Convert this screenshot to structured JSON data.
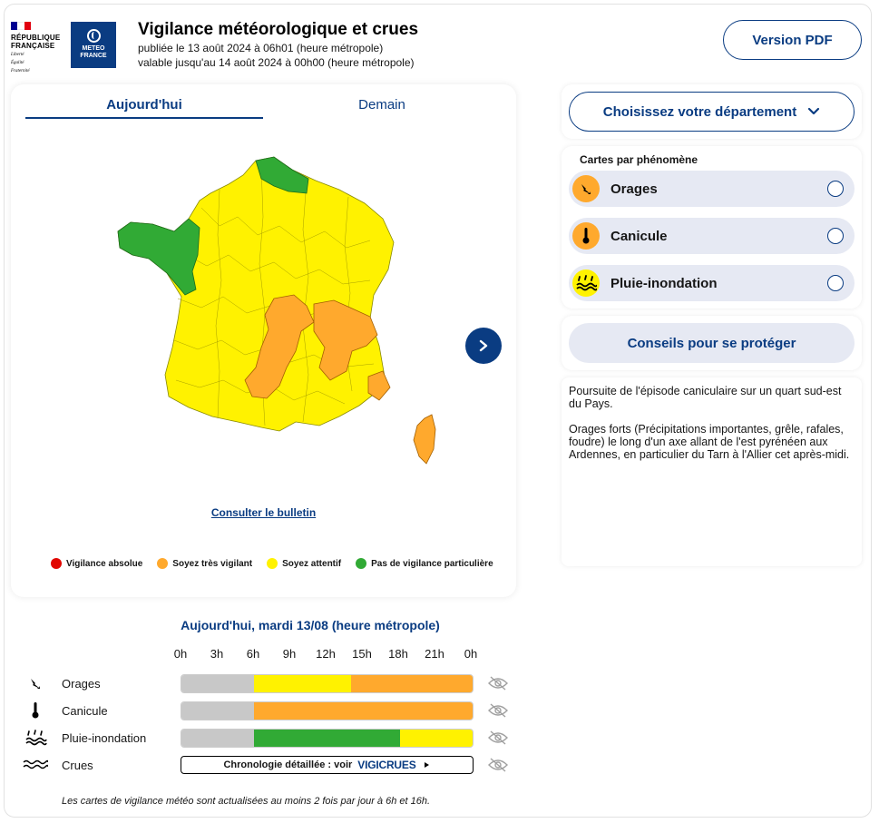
{
  "header": {
    "rf_lines": [
      "RÉPUBLIQUE",
      "FRANÇAISE"
    ],
    "rf_motto": [
      "Liberté",
      "Égalité",
      "Fraternité"
    ],
    "mf_lines": [
      "METEO",
      "FRANCE"
    ],
    "title": "Vigilance météorologique et crues",
    "published": "publiée le 13 août 2024 à 06h01 (heure métropole)",
    "valid_until": "valable jusqu'au 14 août 2024 à 00h00 (heure métropole)",
    "pdf_button": "Version PDF"
  },
  "map_card": {
    "tabs": [
      {
        "label": "Aujourd'hui",
        "active": true
      },
      {
        "label": "Demain",
        "active": false
      }
    ],
    "bulletin_link": "Consulter le bulletin",
    "legend": [
      {
        "label": "Vigilance absolue",
        "color": "#e10600"
      },
      {
        "label": "Soyez très vigilant",
        "color": "#ffa92d"
      },
      {
        "label": "Soyez attentif",
        "color": "#fff200"
      },
      {
        "label": "Pas de vigilance particulière",
        "color": "#31aa35"
      }
    ]
  },
  "sidebar": {
    "department_button": "Choisissez votre département",
    "phenomena_title": "Cartes par phénomène",
    "phenomena": [
      {
        "label": "Orages",
        "icon": "lightning-icon",
        "color": "#ffa92d"
      },
      {
        "label": "Canicule",
        "icon": "thermometer-icon",
        "color": "#ffa92d"
      },
      {
        "label": "Pluie-inondation",
        "icon": "rain-flood-icon",
        "color": "#fff200"
      }
    ],
    "advice_button": "Conseils pour se protéger",
    "comments": [
      "Poursuite de l'épisode caniculaire sur un quart sud-est du Pays.",
      "Orages forts (Précipitations importantes, grêle, rafales, foudre) le long d'un axe allant de l'est pyrénéen aux Ardennes, en particulier du Tarn à l'Allier cet après-midi."
    ]
  },
  "timeline": {
    "title": "Aujourd'hui, mardi 13/08 (heure métropole)",
    "hours": [
      "0h",
      "3h",
      "6h",
      "9h",
      "12h",
      "15h",
      "18h",
      "21h",
      "0h"
    ],
    "rows": [
      {
        "label": "Orages",
        "icon": "lightning-icon",
        "segments": [
          {
            "from": 0,
            "to": 6,
            "color": "#c8c8c8"
          },
          {
            "from": 6,
            "to": 14,
            "color": "#fff200"
          },
          {
            "from": 14,
            "to": 24,
            "color": "#ffa92d"
          }
        ]
      },
      {
        "label": "Canicule",
        "icon": "thermometer-icon",
        "segments": [
          {
            "from": 0,
            "to": 6,
            "color": "#c8c8c8"
          },
          {
            "from": 6,
            "to": 24,
            "color": "#ffa92d"
          }
        ]
      },
      {
        "label": "Pluie-inondation",
        "icon": "rain-flood-icon",
        "segments": [
          {
            "from": 0,
            "to": 6,
            "color": "#c8c8c8"
          },
          {
            "from": 6,
            "to": 18,
            "color": "#31aa35"
          },
          {
            "from": 18,
            "to": 24,
            "color": "#fff200"
          }
        ]
      }
    ],
    "crues_label": "Crues",
    "crues_text": "Chronologie détaillée : voir",
    "vigicrues": "VIGICRUES",
    "footnote": "Les cartes de vigilance météo sont actualisées au moins 2 fois par jour à 6h et 16h."
  }
}
